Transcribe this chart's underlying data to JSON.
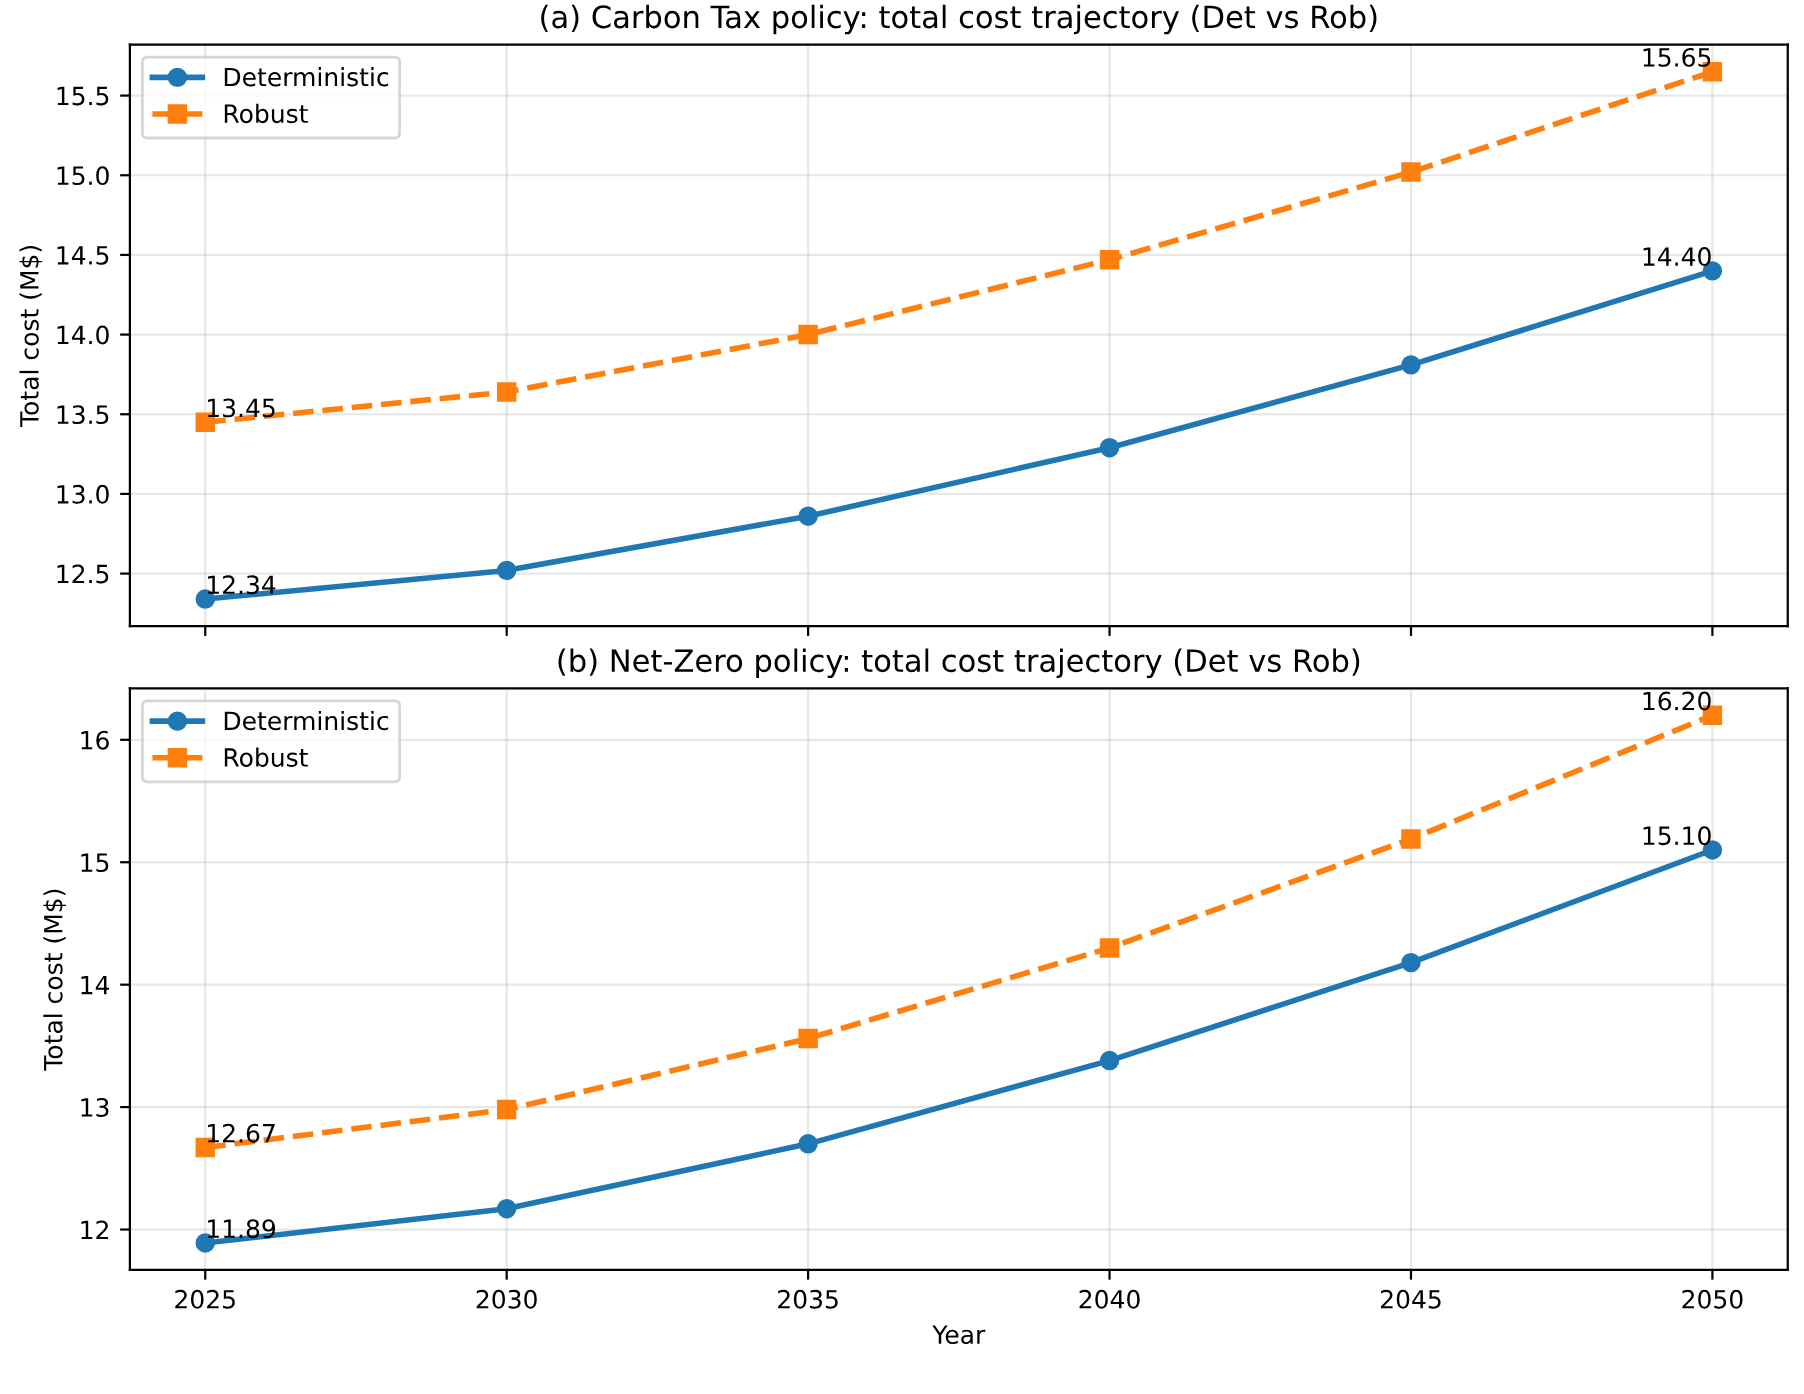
{
  "chart_data": [
    {
      "type": "line",
      "title": "(a) Carbon Tax policy: total cost trajectory (Det vs Rob)",
      "ylabel": "Total cost (M$)",
      "x": [
        2025,
        2030,
        2035,
        2040,
        2045,
        2050
      ],
      "series": [
        {
          "name": "Deterministic",
          "color": "#1f77b4",
          "marker": "circle",
          "line_style": "solid",
          "values": [
            12.34,
            12.52,
            12.86,
            13.29,
            13.81,
            14.4
          ],
          "value_labels": [
            "12.34",
            null,
            null,
            null,
            null,
            "14.40"
          ]
        },
        {
          "name": "Robust",
          "color": "#ff7f0e",
          "marker": "square",
          "line_style": "dashed",
          "values": [
            13.45,
            13.64,
            14.0,
            14.47,
            15.02,
            15.65
          ],
          "value_labels": [
            "13.45",
            null,
            null,
            null,
            null,
            "15.65"
          ]
        }
      ],
      "xlim": [
        2023.75,
        2051.25
      ],
      "xticks": [
        2025,
        2030,
        2035,
        2040,
        2045,
        2050
      ],
      "ylim": [
        12.17,
        15.82
      ],
      "yticks": [
        12.5,
        {
          "value": 13,
          "label": "13.0"
        },
        13.5,
        {
          "value": 14,
          "label": "14.0"
        },
        14.5,
        {
          "value": 15,
          "label": "15.0"
        },
        15.5
      ],
      "grid": true,
      "legend": "top left",
      "tick_labels": "y"
    },
    {
      "type": "line",
      "title": "(b) Net-Zero policy: total cost trajectory (Det vs Rob)",
      "xlabel": "Year",
      "ylabel": "Total cost (M$)",
      "x": [
        2025,
        2030,
        2035,
        2040,
        2045,
        2050
      ],
      "series": [
        {
          "name": "Deterministic",
          "color": "#1f77b4",
          "marker": "circle",
          "line_style": "solid",
          "values": [
            11.89,
            12.17,
            12.7,
            13.38,
            14.18,
            15.1
          ],
          "value_labels": [
            "11.89",
            null,
            null,
            null,
            null,
            "15.10"
          ]
        },
        {
          "name": "Robust",
          "color": "#ff7f0e",
          "marker": "square",
          "line_style": "dashed",
          "values": [
            12.67,
            12.98,
            13.56,
            14.3,
            15.19,
            16.2
          ],
          "value_labels": [
            "12.67",
            null,
            null,
            null,
            null,
            "16.20"
          ]
        }
      ],
      "xlim": [
        2023.75,
        2051.25
      ],
      "xticks": [
        2025,
        2030,
        2035,
        2040,
        2045,
        2050
      ],
      "ylim": [
        11.67,
        16.42
      ],
      "yticks": [
        12,
        13,
        14,
        15,
        16
      ],
      "grid": true,
      "legend": "top left"
    }
  ]
}
